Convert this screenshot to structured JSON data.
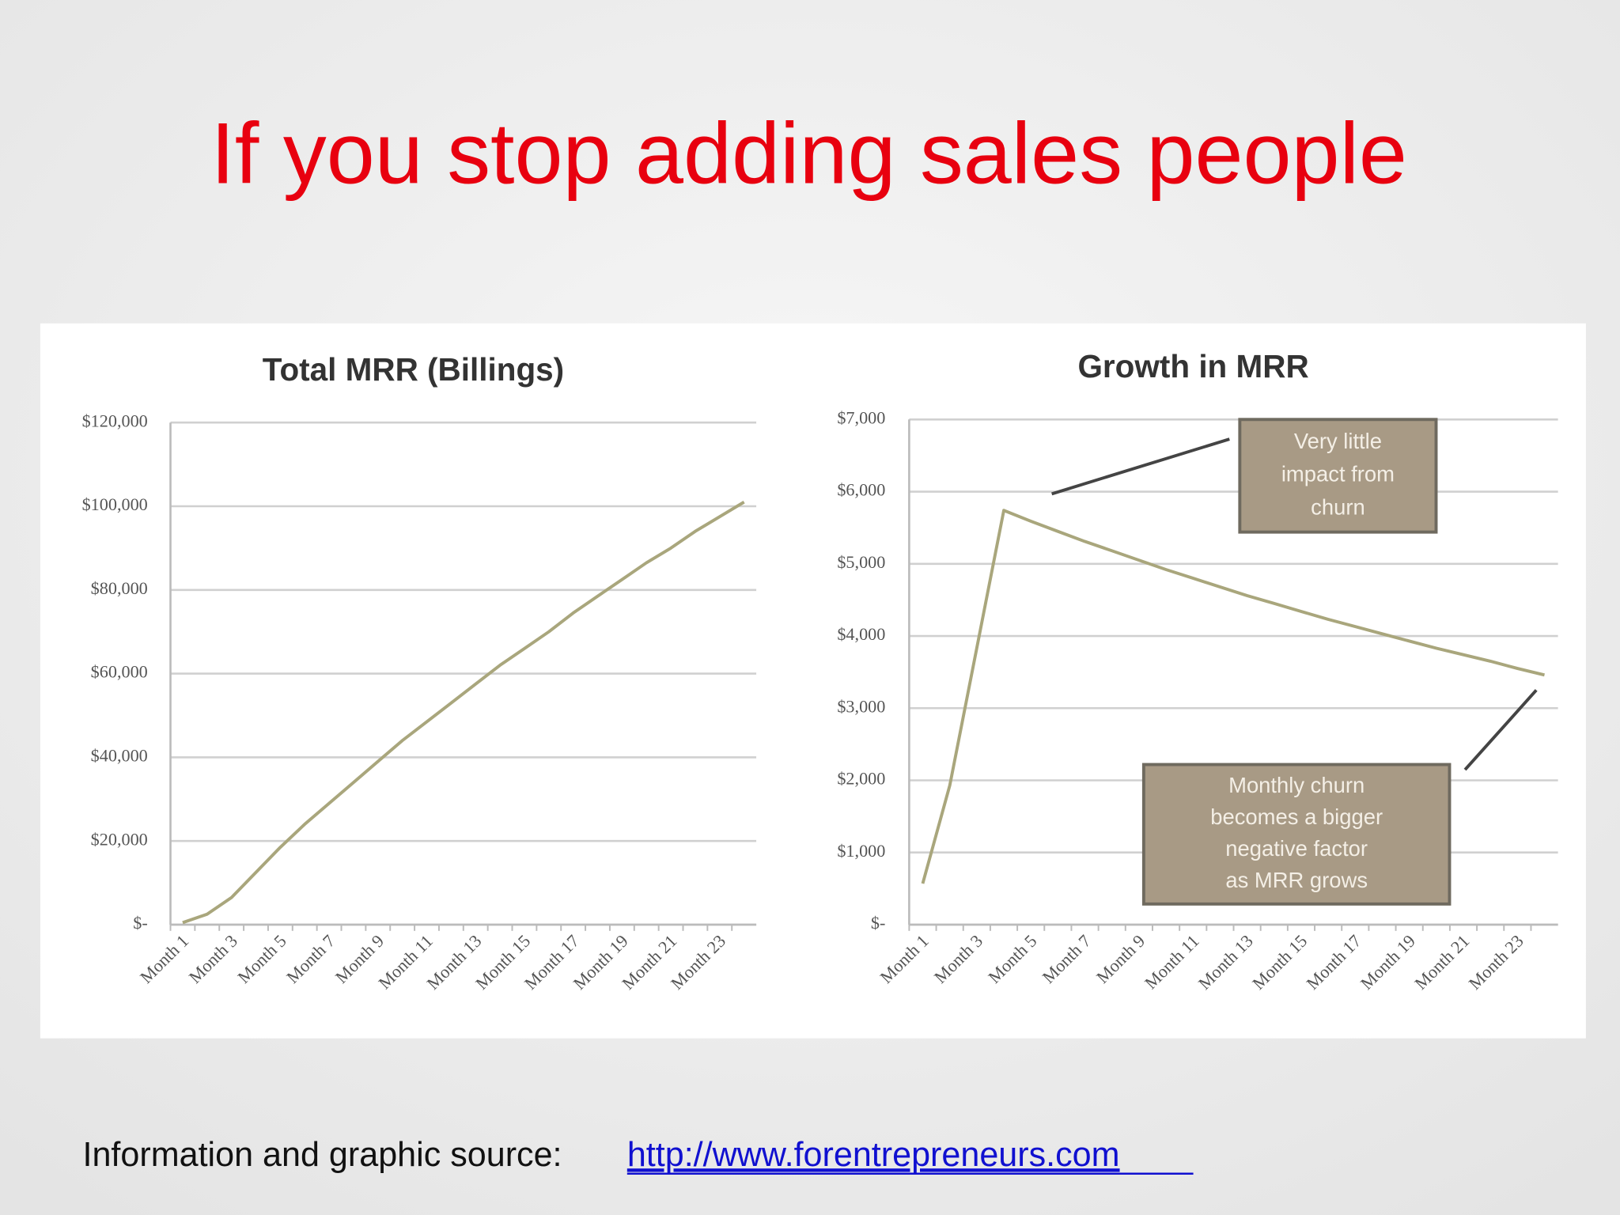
{
  "title": "If you stop adding sales people",
  "source": {
    "text": "Information and graphic source:",
    "link": "http://www.forentrepreneurs.com"
  },
  "chart_data": [
    {
      "type": "line",
      "title": "Total MRR (Billings)",
      "categories": [
        "Month 1",
        null,
        "Month 3",
        null,
        "Month 5",
        null,
        "Month 7",
        null,
        "Month 9",
        null,
        "Month 11",
        null,
        "Month 13",
        null,
        "Month 15",
        null,
        "Month 17",
        null,
        "Month 19",
        null,
        "Month 21",
        null,
        "Month 23",
        null
      ],
      "series": [
        {
          "color": "#a9a67c",
          "values": [
            500,
            2500,
            6500,
            12500,
            18500,
            24000,
            29000,
            34000,
            39000,
            44000,
            48500,
            53000,
            57500,
            62000,
            66000,
            70000,
            74500,
            78500,
            82500,
            86500,
            90000,
            94000,
            97500,
            101000
          ]
        }
      ],
      "ylim": [
        0,
        120000
      ],
      "yticks": [
        {
          "value": 0,
          "label": "$-"
        },
        {
          "value": 20000,
          "label": "$20,000"
        },
        {
          "value": 40000,
          "label": "$40,000"
        },
        {
          "value": 60000,
          "label": "$60,000"
        },
        {
          "value": 80000,
          "label": "$80,000"
        },
        {
          "value": 100000,
          "label": "$100,000"
        },
        {
          "value": 120000,
          "label": "$120,000"
        }
      ],
      "grid": true
    },
    {
      "type": "line",
      "title": "Growth in MRR",
      "categories": [
        "Month 1",
        null,
        "Month 3",
        null,
        "Month 5",
        null,
        "Month 7",
        null,
        "Month 9",
        null,
        "Month 11",
        null,
        "Month 13",
        null,
        "Month 15",
        null,
        "Month 17",
        null,
        "Month 19",
        null,
        "Month 21",
        null,
        "Month 23",
        null
      ],
      "series": [
        {
          "color": "#a9a67c",
          "values": [
            570,
            1930,
            3830,
            5740,
            5590,
            5450,
            5310,
            5180,
            5050,
            4920,
            4800,
            4680,
            4560,
            4450,
            4340,
            4230,
            4130,
            4030,
            3930,
            3830,
            3740,
            3650,
            3550,
            3460
          ]
        }
      ],
      "ylim": [
        0,
        7000
      ],
      "yticks": [
        {
          "value": 0,
          "label": "$-"
        },
        {
          "value": 1000,
          "label": "$1,000"
        },
        {
          "value": 2000,
          "label": "$2,000"
        },
        {
          "value": 3000,
          "label": "$3,000"
        },
        {
          "value": 4000,
          "label": "$4,000"
        },
        {
          "value": 5000,
          "label": "$5,000"
        },
        {
          "value": 6000,
          "label": "$6,000"
        },
        {
          "value": 7000,
          "label": "$7,000"
        }
      ],
      "grid": true,
      "annotations": [
        {
          "lines": [
            "Very little",
            "impact from",
            "churn"
          ]
        },
        {
          "lines": [
            "Monthly  churn",
            "becomes a bigger",
            "negative factor",
            "as MRR grows"
          ]
        }
      ]
    }
  ]
}
